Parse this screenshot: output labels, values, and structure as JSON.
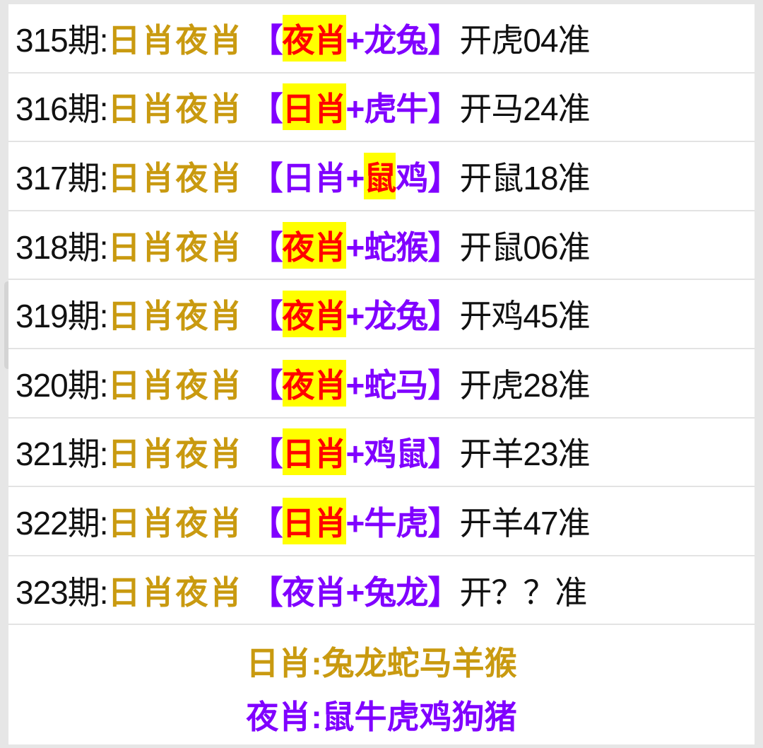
{
  "colors": {
    "label": "#c99a10",
    "bracket": "#8000ff",
    "highlight_bg": "#ffff00",
    "highlight_text": "#ff0000"
  },
  "rows": [
    {
      "period": "315期:",
      "label": "日肖夜肖",
      "parts": [
        {
          "t": "【"
        },
        {
          "t": "夜肖",
          "hl": true
        },
        {
          "t": "+龙兔】"
        }
      ],
      "result": "开虎04准"
    },
    {
      "period": "316期:",
      "label": "日肖夜肖",
      "parts": [
        {
          "t": "【"
        },
        {
          "t": "日肖",
          "hl": true
        },
        {
          "t": "+虎牛】"
        }
      ],
      "result": "开马24准"
    },
    {
      "period": "317期:",
      "label": "日肖夜肖",
      "parts": [
        {
          "t": "【日肖+"
        },
        {
          "t": "鼠",
          "hl": true
        },
        {
          "t": "鸡】"
        }
      ],
      "result": "开鼠18准"
    },
    {
      "period": "318期:",
      "label": "日肖夜肖",
      "parts": [
        {
          "t": "【"
        },
        {
          "t": "夜肖",
          "hl": true
        },
        {
          "t": "+蛇猴】"
        }
      ],
      "result": "开鼠06准"
    },
    {
      "period": "319期:",
      "label": "日肖夜肖",
      "parts": [
        {
          "t": "【"
        },
        {
          "t": "夜肖",
          "hl": true
        },
        {
          "t": "+龙兔】"
        }
      ],
      "result": "开鸡45准"
    },
    {
      "period": "320期:",
      "label": "日肖夜肖",
      "parts": [
        {
          "t": "【"
        },
        {
          "t": "夜肖",
          "hl": true
        },
        {
          "t": "+蛇马】"
        }
      ],
      "result": "开虎28准"
    },
    {
      "period": "321期:",
      "label": "日肖夜肖",
      "parts": [
        {
          "t": "【"
        },
        {
          "t": "日肖",
          "hl": true
        },
        {
          "t": "+鸡鼠】"
        }
      ],
      "result": "开羊23准"
    },
    {
      "period": "322期:",
      "label": "日肖夜肖",
      "parts": [
        {
          "t": "【"
        },
        {
          "t": "日肖",
          "hl": true
        },
        {
          "t": "+牛虎】"
        }
      ],
      "result": "开羊47准"
    },
    {
      "period": "323期:",
      "label": "日肖夜肖",
      "parts": [
        {
          "t": "【夜肖+兔龙】"
        }
      ],
      "result": "开？？准"
    }
  ],
  "footer": {
    "day": "日肖:兔龙蛇马羊猴",
    "night": "夜肖:鼠牛虎鸡狗猪"
  }
}
